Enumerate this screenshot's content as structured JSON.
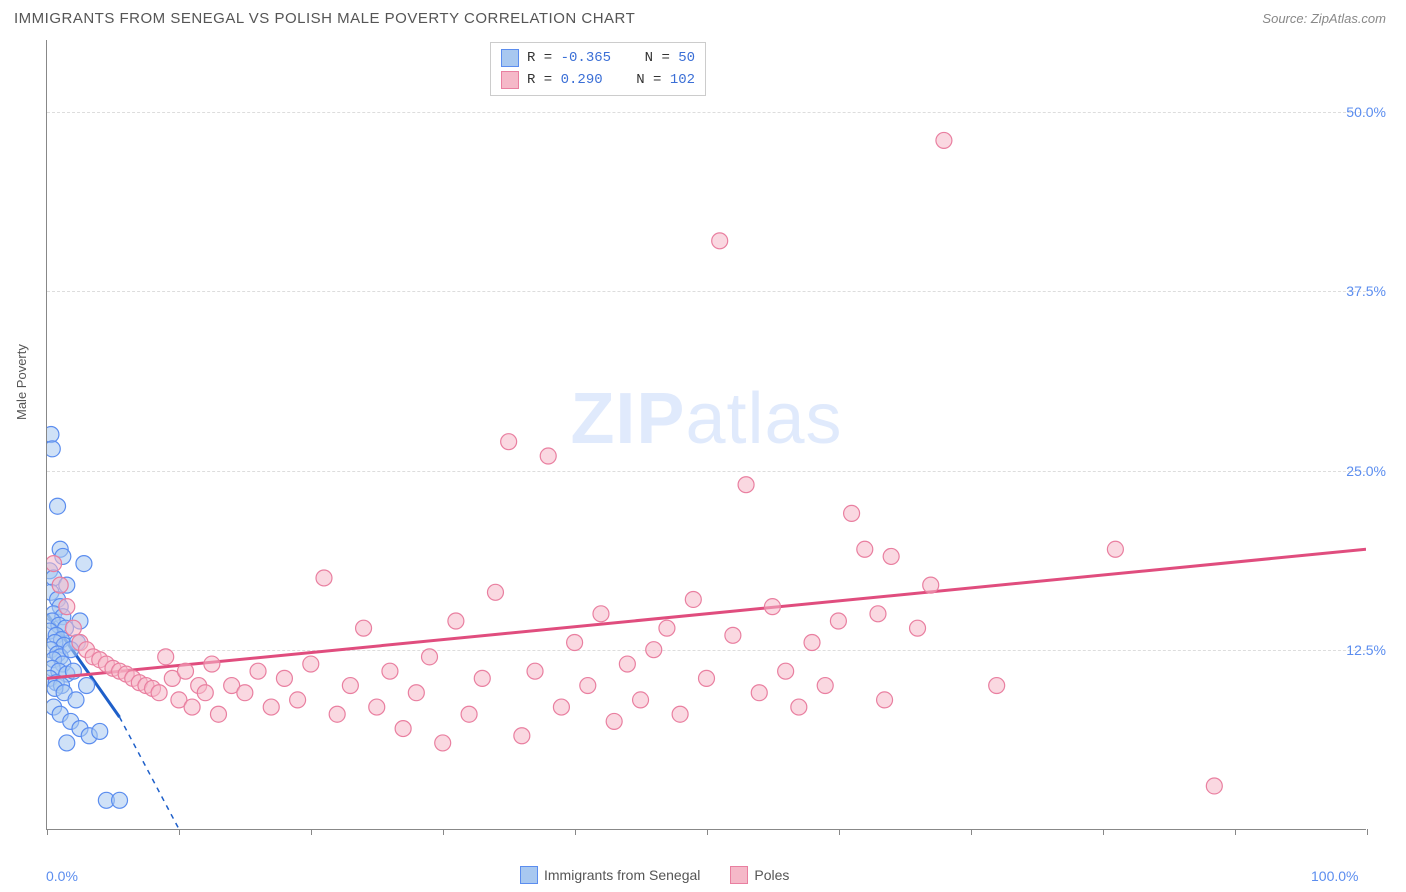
{
  "header": {
    "title": "IMMIGRANTS FROM SENEGAL VS POLISH MALE POVERTY CORRELATION CHART",
    "source_label": "Source:",
    "source_value": "ZipAtlas.com"
  },
  "watermark": {
    "bold": "ZIP",
    "light": "atlas"
  },
  "chart": {
    "type": "scatter",
    "y_axis_label": "Male Poverty",
    "xlim": [
      0,
      100
    ],
    "ylim": [
      0,
      55
    ],
    "x_ticks": [
      0,
      10,
      20,
      30,
      40,
      50,
      60,
      70,
      80,
      90,
      100
    ],
    "x_tick_labels": {
      "0": "0.0%",
      "100": "100.0%"
    },
    "y_gridlines": [
      12.5,
      25.0,
      37.5,
      50.0
    ],
    "y_tick_labels": [
      "12.5%",
      "25.0%",
      "37.5%",
      "50.0%"
    ],
    "background_color": "#ffffff",
    "grid_color": "#dddddd",
    "axis_color": "#888888",
    "marker_radius": 8,
    "marker_stroke_width": 1.2,
    "series": [
      {
        "id": "senegal",
        "label": "Immigrants from Senegal",
        "fill": "#a8c8f0",
        "stroke": "#5b8def",
        "fill_opacity": 0.55,
        "R": "-0.365",
        "N": "50",
        "trend": {
          "x1": 0,
          "y1": 15.0,
          "x2": 5.5,
          "y2": 7.8,
          "color": "#1e5fc9",
          "width": 3,
          "dash_extend_x": 10,
          "dash_extend_y": 0
        },
        "points": [
          [
            0.3,
            27.5
          ],
          [
            0.4,
            26.5
          ],
          [
            0.8,
            22.5
          ],
          [
            1.0,
            19.5
          ],
          [
            1.2,
            19.0
          ],
          [
            0.2,
            18.0
          ],
          [
            0.5,
            17.5
          ],
          [
            1.5,
            17.0
          ],
          [
            0.3,
            16.5
          ],
          [
            0.8,
            16.0
          ],
          [
            1.0,
            15.5
          ],
          [
            0.5,
            15.0
          ],
          [
            1.2,
            14.8
          ],
          [
            0.4,
            14.5
          ],
          [
            0.9,
            14.2
          ],
          [
            1.4,
            14.0
          ],
          [
            0.2,
            13.8
          ],
          [
            0.7,
            13.5
          ],
          [
            1.1,
            13.2
          ],
          [
            0.6,
            13.0
          ],
          [
            1.3,
            12.8
          ],
          [
            0.3,
            12.5
          ],
          [
            0.8,
            12.2
          ],
          [
            1.0,
            12.0
          ],
          [
            0.5,
            11.8
          ],
          [
            1.2,
            11.5
          ],
          [
            0.4,
            11.2
          ],
          [
            0.9,
            11.0
          ],
          [
            1.5,
            10.8
          ],
          [
            0.2,
            10.5
          ],
          [
            0.7,
            10.2
          ],
          [
            1.1,
            10.0
          ],
          [
            0.6,
            9.8
          ],
          [
            1.3,
            9.5
          ],
          [
            2.0,
            11.0
          ],
          [
            2.3,
            13.0
          ],
          [
            2.8,
            18.5
          ],
          [
            2.5,
            14.5
          ],
          [
            3.0,
            10.0
          ],
          [
            1.8,
            12.5
          ],
          [
            2.2,
            9.0
          ],
          [
            0.5,
            8.5
          ],
          [
            1.0,
            8.0
          ],
          [
            1.8,
            7.5
          ],
          [
            2.5,
            7.0
          ],
          [
            3.2,
            6.5
          ],
          [
            4.0,
            6.8
          ],
          [
            1.5,
            6.0
          ],
          [
            4.5,
            2.0
          ],
          [
            5.5,
            2.0
          ]
        ]
      },
      {
        "id": "poles",
        "label": "Poles",
        "fill": "#f5b8c8",
        "stroke": "#e97fa0",
        "fill_opacity": 0.55,
        "R": "0.290",
        "N": "102",
        "trend": {
          "x1": 0,
          "y1": 10.5,
          "x2": 100,
          "y2": 19.5,
          "color": "#e04d7e",
          "width": 3
        },
        "points": [
          [
            0.5,
            18.5
          ],
          [
            1.0,
            17.0
          ],
          [
            1.5,
            15.5
          ],
          [
            2.0,
            14.0
          ],
          [
            2.5,
            13.0
          ],
          [
            3.0,
            12.5
          ],
          [
            3.5,
            12.0
          ],
          [
            4.0,
            11.8
          ],
          [
            4.5,
            11.5
          ],
          [
            5.0,
            11.2
          ],
          [
            5.5,
            11.0
          ],
          [
            6.0,
            10.8
          ],
          [
            6.5,
            10.5
          ],
          [
            7.0,
            10.2
          ],
          [
            7.5,
            10.0
          ],
          [
            8.0,
            9.8
          ],
          [
            8.5,
            9.5
          ],
          [
            9.0,
            12.0
          ],
          [
            9.5,
            10.5
          ],
          [
            10.0,
            9.0
          ],
          [
            10.5,
            11.0
          ],
          [
            11.0,
            8.5
          ],
          [
            11.5,
            10.0
          ],
          [
            12.0,
            9.5
          ],
          [
            12.5,
            11.5
          ],
          [
            13.0,
            8.0
          ],
          [
            14.0,
            10.0
          ],
          [
            15.0,
            9.5
          ],
          [
            16.0,
            11.0
          ],
          [
            17.0,
            8.5
          ],
          [
            18.0,
            10.5
          ],
          [
            19.0,
            9.0
          ],
          [
            20.0,
            11.5
          ],
          [
            21.0,
            17.5
          ],
          [
            22.0,
            8.0
          ],
          [
            23.0,
            10.0
          ],
          [
            24.0,
            14.0
          ],
          [
            25.0,
            8.5
          ],
          [
            26.0,
            11.0
          ],
          [
            27.0,
            7.0
          ],
          [
            28.0,
            9.5
          ],
          [
            29.0,
            12.0
          ],
          [
            30.0,
            6.0
          ],
          [
            31.0,
            14.5
          ],
          [
            32.0,
            8.0
          ],
          [
            33.0,
            10.5
          ],
          [
            34.0,
            16.5
          ],
          [
            35.0,
            27.0
          ],
          [
            36.0,
            6.5
          ],
          [
            37.0,
            11.0
          ],
          [
            38.0,
            26.0
          ],
          [
            39.0,
            8.5
          ],
          [
            40.0,
            13.0
          ],
          [
            41.0,
            10.0
          ],
          [
            42.0,
            15.0
          ],
          [
            43.0,
            7.5
          ],
          [
            44.0,
            11.5
          ],
          [
            45.0,
            9.0
          ],
          [
            46.0,
            12.5
          ],
          [
            47.0,
            14.0
          ],
          [
            48.0,
            8.0
          ],
          [
            49.0,
            16.0
          ],
          [
            50.0,
            10.5
          ],
          [
            51.0,
            41.0
          ],
          [
            52.0,
            13.5
          ],
          [
            53.0,
            24.0
          ],
          [
            54.0,
            9.5
          ],
          [
            55.0,
            15.5
          ],
          [
            56.0,
            11.0
          ],
          [
            57.0,
            8.5
          ],
          [
            58.0,
            13.0
          ],
          [
            59.0,
            10.0
          ],
          [
            60.0,
            14.5
          ],
          [
            61.0,
            22.0
          ],
          [
            62.0,
            19.5
          ],
          [
            63.0,
            15.0
          ],
          [
            63.5,
            9.0
          ],
          [
            64.0,
            19.0
          ],
          [
            66.0,
            14.0
          ],
          [
            67.0,
            17.0
          ],
          [
            68.0,
            48.0
          ],
          [
            72.0,
            10.0
          ],
          [
            81.0,
            19.5
          ],
          [
            88.5,
            3.0
          ]
        ]
      }
    ]
  },
  "legend_top": {
    "rows": [
      {
        "swatch_fill": "#a8c8f0",
        "swatch_stroke": "#5b8def",
        "r_label": "R =",
        "r_value": "-0.365",
        "n_label": "N =",
        "n_value": "50"
      },
      {
        "swatch_fill": "#f5b8c8",
        "swatch_stroke": "#e97fa0",
        "r_label": "R =",
        "r_value": "0.290",
        "n_label": "N =",
        "n_value": "102"
      }
    ]
  },
  "legend_bottom": {
    "items": [
      {
        "swatch_fill": "#a8c8f0",
        "swatch_stroke": "#5b8def",
        "label": "Immigrants from Senegal"
      },
      {
        "swatch_fill": "#f5b8c8",
        "swatch_stroke": "#e97fa0",
        "label": "Poles"
      }
    ]
  }
}
